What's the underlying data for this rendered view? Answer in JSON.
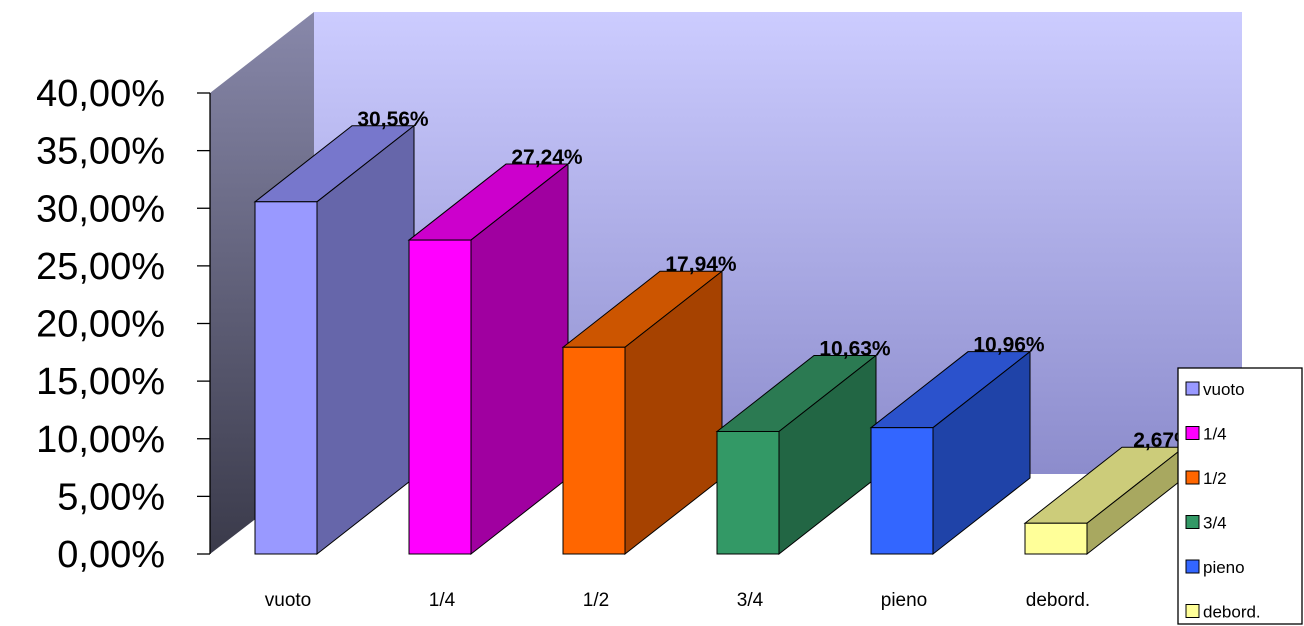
{
  "chart_data": {
    "type": "bar",
    "style": "3d-column",
    "title": "",
    "xlabel": "",
    "ylabel": "",
    "categories": [
      "vuoto",
      "1/4",
      "1/2",
      "3/4",
      "pieno",
      "debord."
    ],
    "values": [
      30.56,
      27.24,
      17.94,
      10.63,
      10.96,
      2.67
    ],
    "data_labels": [
      "30,56%",
      "27,24%",
      "17,94%",
      "10,63%",
      "10,96%",
      "2,67%"
    ],
    "ylim": [
      0,
      40
    ],
    "yticks": [
      0,
      5,
      10,
      15,
      20,
      25,
      30,
      35,
      40
    ],
    "ytick_labels": [
      "0,00%",
      "5,00%",
      "10,00%",
      "15,00%",
      "20,00%",
      "25,00%",
      "30,00%",
      "35,00%",
      "40,00%"
    ],
    "grid": false,
    "legend": {
      "position": "right",
      "entries": [
        "vuoto",
        "1/4",
        "1/2",
        "3/4",
        "pieno",
        "debord."
      ]
    },
    "colors": {
      "front": [
        "#9999ff",
        "#ff00ff",
        "#ff6600",
        "#339966",
        "#3366ff",
        "#ffff99"
      ],
      "top": [
        "#7777cc",
        "#cc00cc",
        "#cc5500",
        "#2b7a52",
        "#2b52cc",
        "#cccc7a"
      ],
      "side": [
        "#6666aa",
        "#a000a0",
        "#a64200",
        "#226644",
        "#1f43a8",
        "#a8a860"
      ],
      "back_wall_top": "#ccccff",
      "back_wall_bottom": "#8c8ccc",
      "side_wall_top": "#8888aa",
      "side_wall_bottom": "#3a3a4a"
    }
  }
}
